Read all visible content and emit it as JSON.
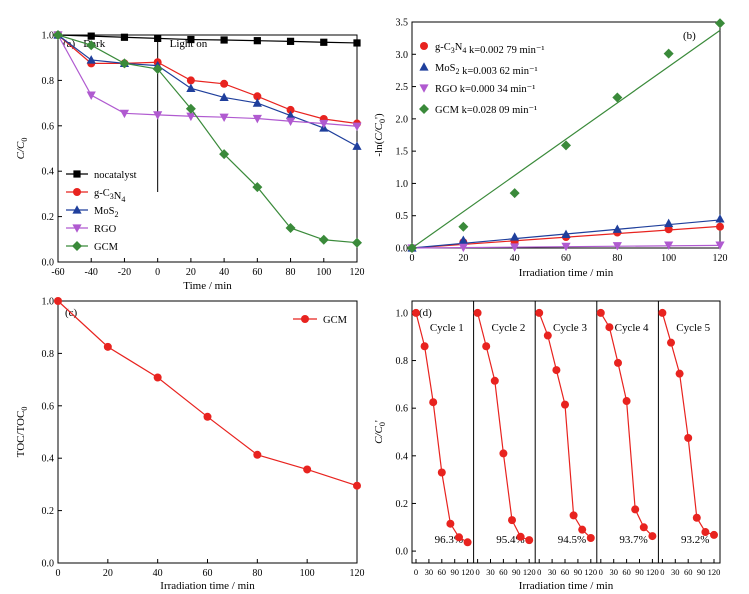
{
  "colors": {
    "black": "#000000",
    "red": "#e8231f",
    "blue": "#1f3f9c",
    "purple": "#b05ad0",
    "green": "#3a8a3a"
  },
  "chart_data": [
    {
      "panel": "(a)",
      "type": "line",
      "xlabel": "Time / min",
      "ylabel": "C/C0",
      "xlim": [
        -60,
        120
      ],
      "ylim": [
        0.0,
        1.0
      ],
      "xticks": [
        -60,
        -40,
        -20,
        0,
        20,
        40,
        60,
        80,
        100,
        120
      ],
      "yticks": [
        0.0,
        0.2,
        0.4,
        0.6,
        0.8,
        1.0
      ],
      "annotations": [
        "Dark",
        "Light on"
      ],
      "legend_position": "bottom-left",
      "x": [
        -60,
        -40,
        -20,
        0,
        20,
        40,
        60,
        80,
        100,
        120
      ],
      "series": [
        {
          "name": "nocatalyst",
          "marker": "square",
          "color": "#000000",
          "values": [
            1.0,
            0.995,
            0.99,
            0.985,
            0.98,
            0.978,
            0.975,
            0.972,
            0.968,
            0.965
          ]
        },
        {
          "name": "g-C3N4",
          "marker": "circle",
          "color": "#e8231f",
          "values": [
            1.0,
            0.875,
            0.875,
            0.88,
            0.8,
            0.785,
            0.73,
            0.67,
            0.63,
            0.61
          ]
        },
        {
          "name": "MoS2",
          "marker": "triangle-up",
          "color": "#1f3f9c",
          "values": [
            1.0,
            0.89,
            0.875,
            0.865,
            0.765,
            0.725,
            0.7,
            0.645,
            0.59,
            0.51
          ]
        },
        {
          "name": "RGO",
          "marker": "triangle-down",
          "color": "#b05ad0",
          "values": [
            1.0,
            0.735,
            0.655,
            0.648,
            0.642,
            0.638,
            0.632,
            0.62,
            0.61,
            0.598
          ]
        },
        {
          "name": "GCM",
          "marker": "diamond",
          "color": "#3a8a3a",
          "values": [
            1.0,
            0.955,
            0.875,
            0.85,
            0.675,
            0.475,
            0.33,
            0.15,
            0.098,
            0.085
          ]
        }
      ]
    },
    {
      "panel": "(b)",
      "type": "scatter",
      "xlabel": "Irradiation time / min",
      "ylabel": "-ln(C/C0')",
      "xlim": [
        0,
        120
      ],
      "ylim": [
        0.0,
        3.5
      ],
      "xticks": [
        0,
        20,
        40,
        60,
        80,
        100,
        120
      ],
      "yticks": [
        0.0,
        0.5,
        1.0,
        1.5,
        2.0,
        2.5,
        3.0,
        3.5
      ],
      "legend_position": "top-left",
      "x": [
        0,
        20,
        40,
        60,
        80,
        100,
        120
      ],
      "series": [
        {
          "name": "g-C3N4",
          "legend_k": "k=0.002 79 min⁻¹",
          "marker": "circle",
          "color": "#e8231f",
          "values": [
            0.0,
            0.09,
            0.1,
            0.17,
            0.24,
            0.29,
            0.33
          ],
          "fit_slope": 0.00279
        },
        {
          "name": "MoS2",
          "legend_k": "k=0.003 62 min⁻¹",
          "marker": "triangle-up",
          "color": "#1f3f9c",
          "values": [
            0.0,
            0.12,
            0.17,
            0.21,
            0.29,
            0.38,
            0.45
          ],
          "fit_slope": 0.00362
        },
        {
          "name": "RGO",
          "legend_k": "k=0.000 34 min⁻¹",
          "marker": "triangle-down",
          "color": "#b05ad0",
          "values": [
            0.0,
            0.01,
            0.015,
            0.025,
            0.035,
            0.045,
            0.045
          ],
          "fit_slope": 0.00034
        },
        {
          "name": "GCM",
          "legend_k": "k=0.028 09 min⁻¹",
          "marker": "diamond",
          "color": "#3a8a3a",
          "values": [
            0.0,
            0.33,
            0.85,
            1.59,
            2.33,
            3.01,
            3.48
          ],
          "fit_slope": 0.02809
        }
      ]
    },
    {
      "panel": "(c)",
      "type": "line",
      "xlabel": "Irradiation time / min",
      "ylabel": "TOC/TOC0",
      "xlim": [
        0,
        120
      ],
      "ylim": [
        0.0,
        1.0
      ],
      "xticks": [
        0,
        20,
        40,
        60,
        80,
        100,
        120
      ],
      "yticks": [
        0.0,
        0.2,
        0.4,
        0.6,
        0.8,
        1.0
      ],
      "legend_position": "top-right",
      "x": [
        0,
        20,
        40,
        60,
        80,
        100,
        120
      ],
      "series": [
        {
          "name": "GCM",
          "marker": "circle",
          "color": "#e8231f",
          "values": [
            1.0,
            0.825,
            0.708,
            0.558,
            0.413,
            0.357,
            0.295
          ]
        }
      ]
    },
    {
      "panel": "(d)",
      "type": "line",
      "xlabel": "Irradiation time / min",
      "ylabel": "C/C0'",
      "xlim": [
        0,
        120
      ],
      "ylim": [
        -0.05,
        1.05
      ],
      "xticks": [
        0,
        30,
        60,
        90,
        120
      ],
      "yticks": [
        0.0,
        0.2,
        0.4,
        0.6,
        0.8,
        1.0
      ],
      "x": [
        0,
        10,
        20,
        30,
        40,
        50,
        60,
        70
      ],
      "cycles": [
        {
          "label": "Cycle 1",
          "removal": "96.3%",
          "values": [
            1.0,
            0.86,
            0.625,
            0.33,
            0.115,
            0.058,
            0.037,
            null
          ]
        },
        {
          "label": "Cycle 2",
          "removal": "95.4%",
          "values": [
            1.0,
            0.86,
            0.715,
            0.41,
            0.13,
            0.06,
            0.046,
            null
          ]
        },
        {
          "label": "Cycle 3",
          "removal": "94.5%",
          "values": [
            1.0,
            0.905,
            0.76,
            0.615,
            0.15,
            0.09,
            0.055,
            null
          ]
        },
        {
          "label": "Cycle 4",
          "removal": "93.7%",
          "values": [
            1.0,
            0.94,
            0.79,
            0.63,
            0.175,
            0.1,
            0.063,
            null
          ]
        },
        {
          "label": "Cycle 5",
          "removal": "93.2%",
          "values": [
            1.0,
            0.875,
            0.745,
            0.475,
            0.14,
            0.08,
            0.068,
            null
          ]
        }
      ],
      "series_color": "#e8231f"
    }
  ]
}
